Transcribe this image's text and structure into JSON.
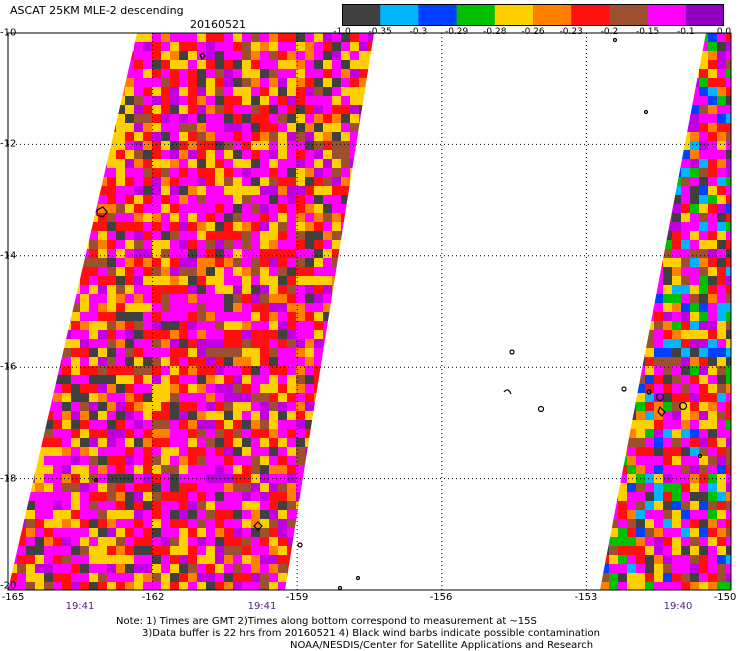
{
  "header": {
    "title": "ASCAT 25KM MLE-2 descending",
    "date": "20160521"
  },
  "colorbar": {
    "labels": [
      "-1.0",
      "-0.35",
      "-0.3",
      "-0.29",
      "-0.28",
      "-0.26",
      "-0.23",
      "-0.2",
      "-0.15",
      "-0.1",
      "0.0"
    ],
    "colors": [
      "#404040",
      "#00b4ff",
      "#0040ff",
      "#00c000",
      "#ffd000",
      "#ff8000",
      "#ff1010",
      "#9c5030",
      "#ff00ff",
      "#9000c0"
    ]
  },
  "map": {
    "lat_labels": [
      "-10",
      "-12",
      "-14",
      "-16",
      "-18",
      "-20"
    ],
    "lon_labels": [
      "-165",
      "-162",
      "-159",
      "-156",
      "-153",
      "-150"
    ],
    "lat_range": [
      -20,
      -10
    ],
    "lon_range": [
      -165,
      -150
    ],
    "grid": true
  },
  "time_labels": [
    "19:41",
    "19:41",
    "19:40"
  ],
  "notes": {
    "line1": "Note: 1) Times are GMT 2)Times along bottom correspond to measurement at ~15S",
    "line2": "3)Data buffer is 22 hrs from 20160521 4) Black wind barbs indicate possible contamination",
    "line3": "NOAA/NESDIS/Center for Satellite Applications and Research"
  }
}
